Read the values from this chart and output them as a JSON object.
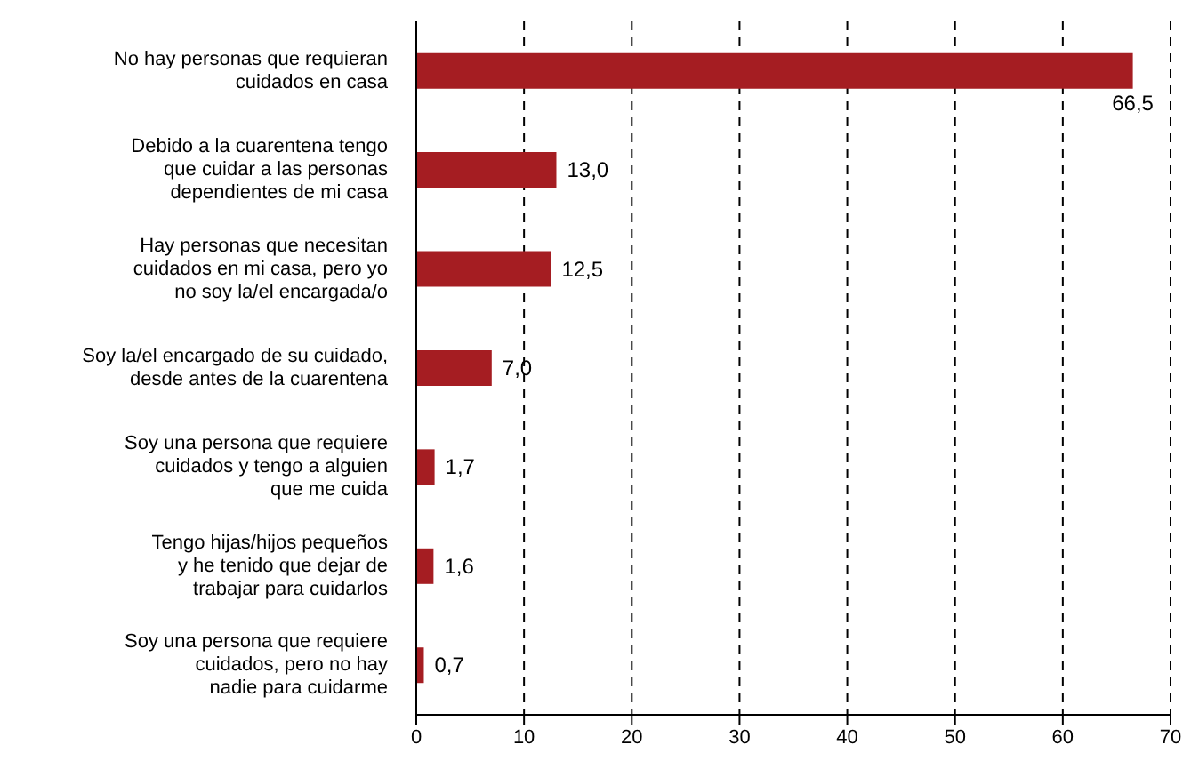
{
  "chart_data": {
    "type": "bar",
    "orientation": "horizontal",
    "categories": [
      "No hay personas que requieran\ncuidados en casa",
      "Debido a la cuarentena tengo\nque cuidar a las personas\ndependientes de mi casa",
      "Hay personas que necesitan\ncuidados en mi casa, pero yo\nno soy la/el encargada/o",
      "Soy la/el encargado de su cuidado,\ndesde antes de la cuarentena",
      "Soy una persona que requiere\ncuidados y tengo a alguien\nque me cuida",
      "Tengo hijas/hijos pequeños\ny he tenido que dejar de\ntrabajar para cuidarlos",
      "Soy una persona que requiere\ncuidados, pero no hay\nnadie para cuidarme"
    ],
    "values": [
      66.5,
      13.0,
      12.5,
      7.0,
      1.7,
      1.6,
      0.7
    ],
    "value_labels": [
      "66,5",
      "13,0",
      "12,5",
      "7,0",
      "1,7",
      "1,6",
      "0,7"
    ],
    "color": "#a51d22",
    "xlim": [
      0,
      70
    ],
    "xticks": [
      0,
      10,
      20,
      30,
      40,
      50,
      60,
      70
    ],
    "grid": "x",
    "legend": false
  }
}
